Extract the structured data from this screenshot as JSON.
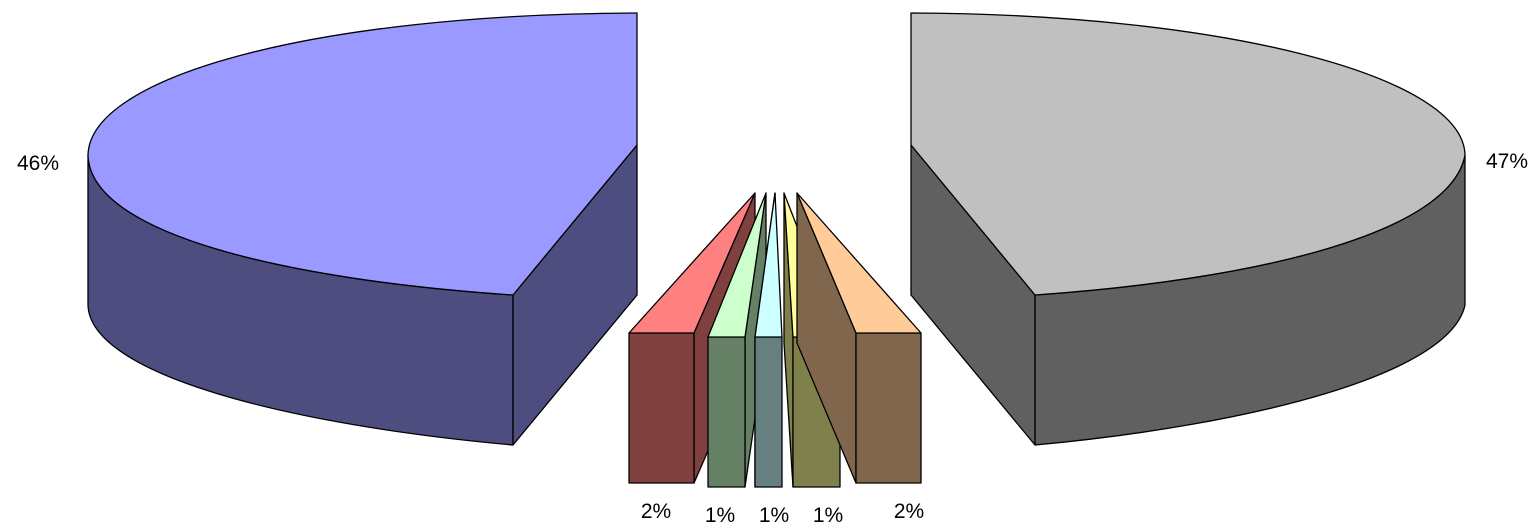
{
  "chart_data": {
    "type": "pie",
    "style": "3d-exploded",
    "slices": [
      {
        "label": "46%",
        "value": 46,
        "top_color": "#9999FF",
        "side_color": "#4D4D80"
      },
      {
        "label": "2%",
        "value": 2,
        "top_color": "#FF8080",
        "side_color": "#804040"
      },
      {
        "label": "1%",
        "value": 1,
        "top_color": "#CCFFCC",
        "side_color": "#668066"
      },
      {
        "label": "1%",
        "value": 1,
        "top_color": "#CCFFFF",
        "side_color": "#668080"
      },
      {
        "label": "1%",
        "value": 1,
        "top_color": "#FFFF99",
        "side_color": "#80804D"
      },
      {
        "label": "2%",
        "value": 2,
        "top_color": "#FFCC99",
        "side_color": "#80664D"
      },
      {
        "label": "47%",
        "value": 47,
        "top_color": "#C0C0C0",
        "side_color": "#606060"
      }
    ],
    "title": "",
    "legend": "none"
  }
}
